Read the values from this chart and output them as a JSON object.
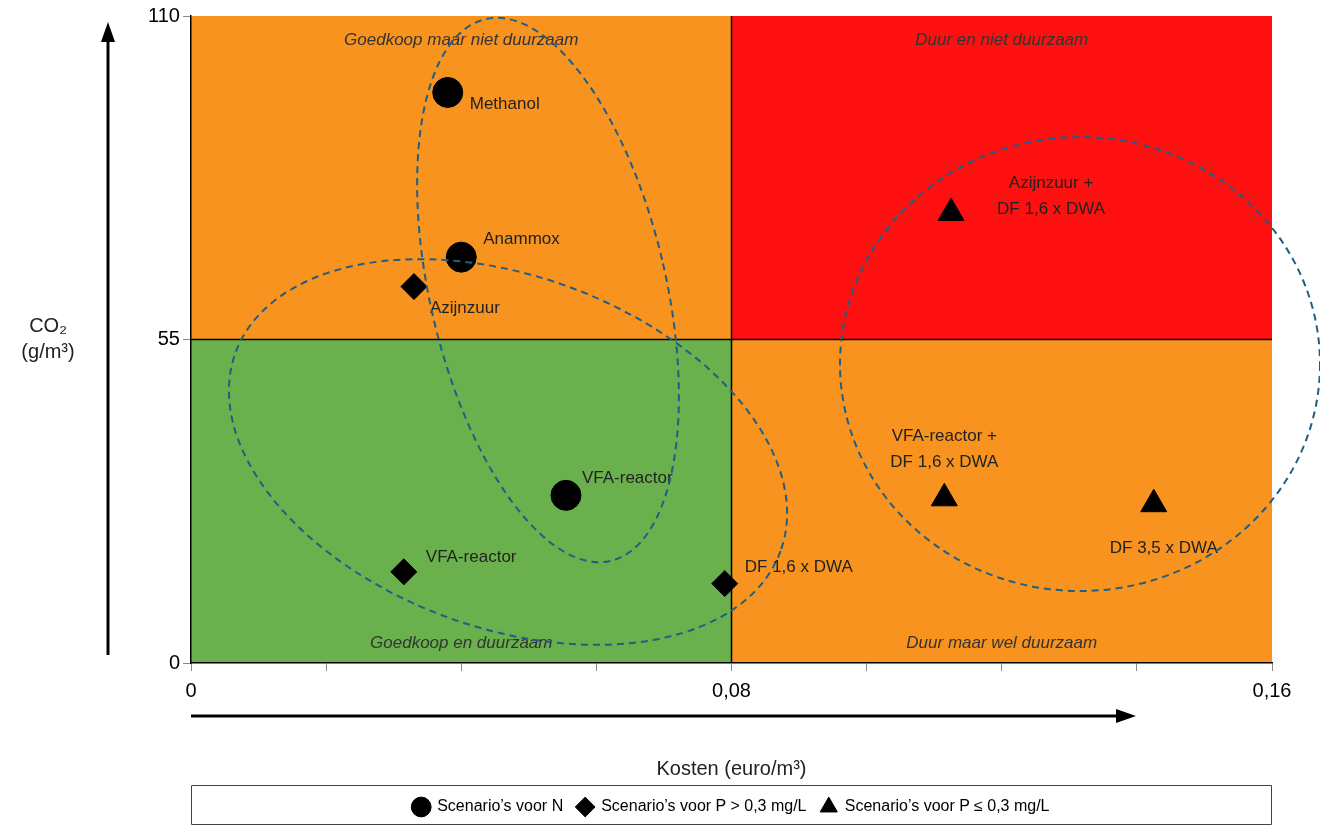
{
  "chart_data": {
    "type": "scatter",
    "xlabel": "Kosten (euro/m³)",
    "ylabel": "CO₂ (g/m³)",
    "xlim": [
      0,
      0.16
    ],
    "xticks": [
      0,
      {
        "value": 0.02,
        "label": null
      },
      {
        "value": 0.04,
        "label": null
      },
      {
        "value": 0.06,
        "label": null
      },
      {
        "value": 0.08,
        "label": "0,08"
      },
      {
        "value": 0.1,
        "label": null
      },
      {
        "value": 0.12,
        "label": null
      },
      {
        "value": 0.14,
        "label": null
      },
      {
        "value": 0.16,
        "label": "0,16"
      }
    ],
    "ylim": [
      0,
      110
    ],
    "yticks": [
      0,
      55,
      110
    ],
    "grid": false,
    "legend": "bottom",
    "series": [
      {
        "name": "Scenario’s voor N",
        "color": "#000000",
        "marker": "circle",
        "x": [
          0.038,
          0.04,
          0.0555
        ],
        "values": [
          97,
          69,
          28.5
        ]
      },
      {
        "name": "Scenario’s voor P > 0,3 mg/L",
        "color": "#000000",
        "marker": "diamond",
        "x": [
          0.033,
          0.0315,
          0.079
        ],
        "values": [
          64,
          15.5,
          13.5
        ]
      },
      {
        "name": "Scenario’s voor P ≤ 0,3 mg/L",
        "color": "#000000",
        "marker": "triangle",
        "x": [
          0.1125,
          0.1115,
          0.1425
        ],
        "values": [
          76.5,
          28,
          27
        ]
      }
    ],
    "ref_lines": [
      {
        "axis": "x",
        "value": 0.08,
        "color": "#000000"
      },
      {
        "axis": "y",
        "value": 55,
        "color": "#000000"
      }
    ],
    "annotations": [
      "Goedkoop maar niet duurzaam",
      "Duur en niet duurzaam",
      "Goedkoop en duurzaam",
      "Duur maar wel duurzaam",
      {
        "text": "Methanol",
        "x": 0.038,
        "y": 97
      },
      {
        "text": "Anammox",
        "x": 0.04,
        "y": 69
      },
      {
        "text": "VFA-reactor",
        "x": 0.0555,
        "y": 28.5
      },
      {
        "text": "Azijnzuur",
        "x": 0.033,
        "y": 64
      },
      {
        "text": "VFA-reactor",
        "x": 0.0315,
        "y": 15.5
      },
      {
        "text": "DF 1,6 x DWA",
        "x": 0.079,
        "y": 13.5
      },
      {
        "text": "Azijnzuur +\nDF 1,6 x DWA",
        "x": 0.1125,
        "y": 76.5
      },
      {
        "text": "VFA-reactor +\nDF 1,6 x DWA",
        "x": 0.1115,
        "y": 28
      },
      {
        "text": "DF 3,5 x DWA",
        "x": 0.1425,
        "y": 27
      }
    ]
  }
}
